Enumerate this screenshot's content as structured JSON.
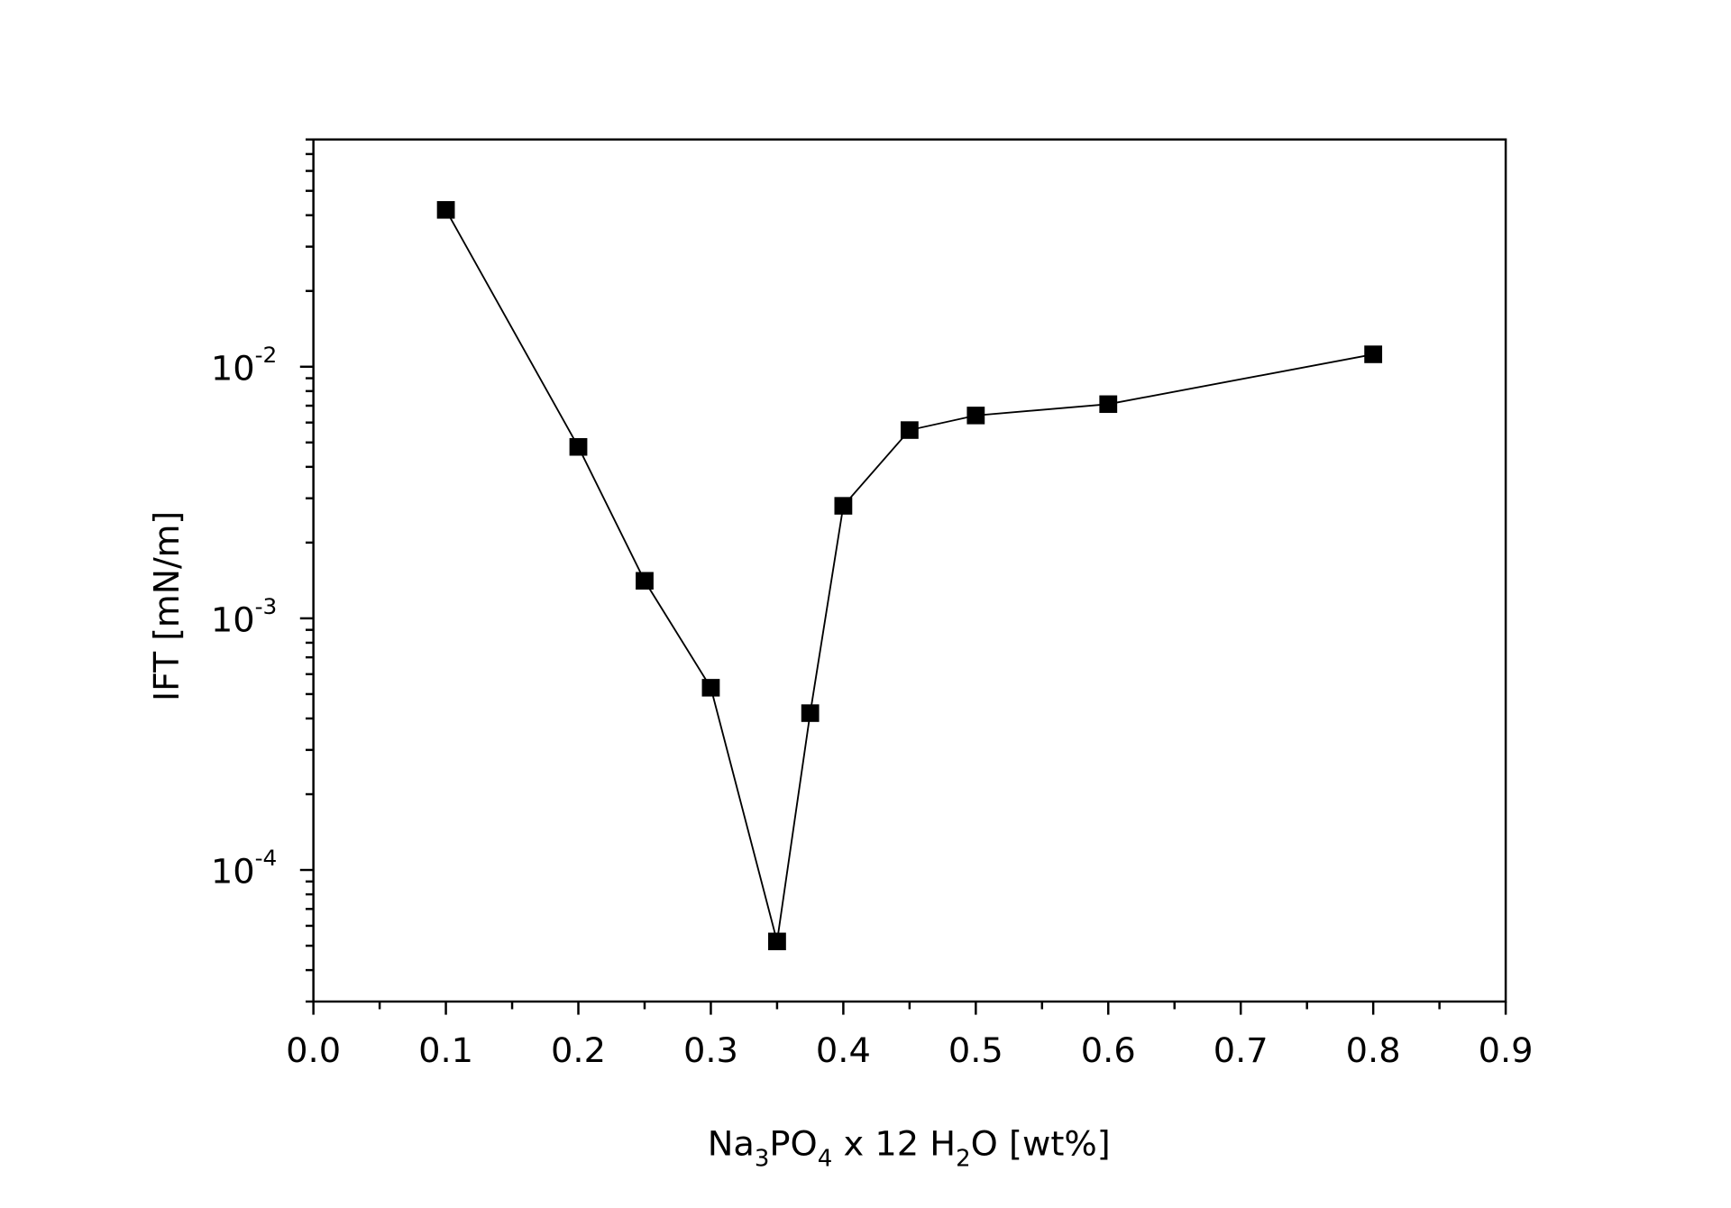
{
  "chart_data": {
    "type": "scatter",
    "line_connected": true,
    "marker": "filled-square",
    "color": "#000000",
    "xlabel": {
      "base": "Na",
      "sub1": "3",
      "mid": "PO",
      "sub2": "4",
      "mid2": " x 12 H",
      "sub3": "2",
      "end": "O [wt%]"
    },
    "ylabel": "IFT [mN/m]",
    "xlim": [
      0.0,
      0.9
    ],
    "ylim": [
      3e-05,
      0.08
    ],
    "yscale": "log",
    "grid": false,
    "x_ticks": [
      "0.0",
      "0.1",
      "0.2",
      "0.3",
      "0.4",
      "0.5",
      "0.6",
      "0.7",
      "0.8",
      "0.9"
    ],
    "y_ticks": [
      {
        "base": "10",
        "exp": "-2",
        "value": 0.01
      },
      {
        "base": "10",
        "exp": "-3",
        "value": 0.001
      },
      {
        "base": "10",
        "exp": "-4",
        "value": 0.0001
      }
    ],
    "x": [
      0.1,
      0.2,
      0.25,
      0.3,
      0.35,
      0.375,
      0.4,
      0.45,
      0.5,
      0.6,
      0.8
    ],
    "y": [
      0.042,
      0.0048,
      0.00141,
      0.00053,
      5.2e-05,
      0.00042,
      0.0028,
      0.0056,
      0.0064,
      0.0071,
      0.0112
    ]
  }
}
